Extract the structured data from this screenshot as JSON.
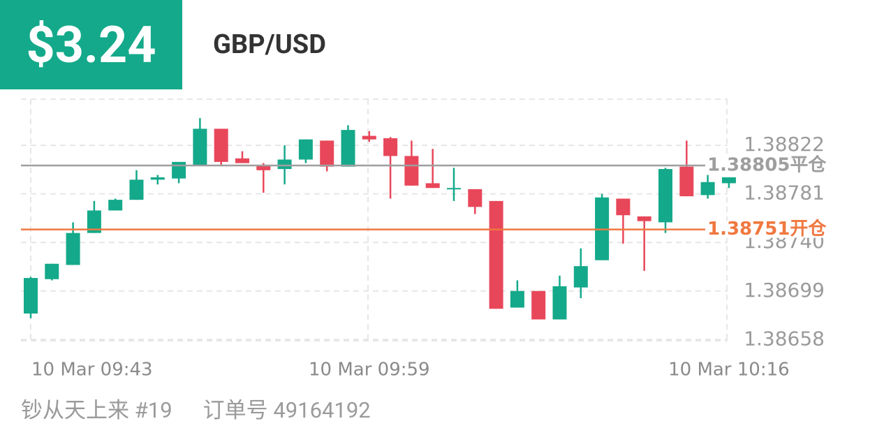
{
  "header": {
    "profit": "$3.24",
    "symbol": "GBP/USD"
  },
  "chart_data": {
    "type": "candlestick",
    "categories": [
      "10 Mar  09:43",
      null,
      null,
      null,
      null,
      null,
      null,
      null,
      null,
      null,
      null,
      null,
      null,
      null,
      null,
      null,
      "10 Mar  09:59",
      null,
      null,
      null,
      null,
      null,
      null,
      null,
      null,
      null,
      null,
      null,
      null,
      null,
      null,
      null,
      null,
      "10 Mar  10:16"
    ],
    "open": [
      1.3868,
      1.38709,
      1.38721,
      1.38748,
      1.38767,
      1.38776,
      1.38793,
      1.38794,
      1.38805,
      1.38836,
      1.38811,
      1.38805,
      1.38802,
      1.3881,
      1.38826,
      1.38804,
      1.3883,
      1.38828,
      1.38813,
      1.3879,
      1.38785,
      1.38785,
      1.38775,
      1.38685,
      1.38699,
      1.38675,
      1.38702,
      1.38725,
      1.38777,
      1.38762,
      1.38757,
      1.38804,
      1.3878,
      1.3879
    ],
    "high": [
      1.38711,
      1.38722,
      1.38757,
      1.38775,
      1.38777,
      1.38801,
      1.38797,
      1.38808,
      1.38845,
      1.38836,
      1.38817,
      1.38807,
      1.38822,
      1.38827,
      1.38826,
      1.38839,
      1.38834,
      1.38829,
      1.38826,
      1.38819,
      1.38803,
      1.38785,
      1.38775,
      1.38708,
      1.38699,
      1.38712,
      1.38735,
      1.38781,
      1.38777,
      1.38762,
      1.38803,
      1.38826,
      1.38797,
      1.38795
    ],
    "low": [
      1.38676,
      1.38708,
      1.38721,
      1.38748,
      1.38767,
      1.38776,
      1.38789,
      1.3879,
      1.38805,
      1.38805,
      1.38807,
      1.38782,
      1.38789,
      1.38807,
      1.388,
      1.38804,
      1.38825,
      1.38777,
      1.38788,
      1.38786,
      1.38775,
      1.38764,
      1.38684,
      1.38685,
      1.38675,
      1.38675,
      1.38693,
      1.38725,
      1.38739,
      1.38716,
      1.38748,
      1.38779,
      1.38777,
      1.38786
    ],
    "close": [
      1.3871,
      1.38722,
      1.38748,
      1.38767,
      1.38776,
      1.38793,
      1.38795,
      1.38808,
      1.38836,
      1.38808,
      1.38807,
      1.38801,
      1.3881,
      1.38827,
      1.38804,
      1.38835,
      1.38827,
      1.38813,
      1.38788,
      1.38786,
      1.38786,
      1.3877,
      1.38684,
      1.38699,
      1.38675,
      1.38703,
      1.3872,
      1.38778,
      1.38763,
      1.38758,
      1.38802,
      1.38779,
      1.38791,
      1.38795
    ],
    "up_color": "#14a98a",
    "down_color": "#e8475a",
    "ylim": [
      1.38657,
      1.38861
    ],
    "yticks": [
      1.38822,
      1.38781,
      {
        "value": 1.3874,
        "label": "1.38740"
      },
      1.38699,
      1.38658
    ],
    "grid": true,
    "reference_lines": [
      {
        "value": 1.38805,
        "label": "1.38805平仓",
        "color": "#9e9e9e"
      },
      {
        "value": 1.38751,
        "label": "1.38751开仓",
        "color": "#f07840"
      }
    ]
  },
  "footer": {
    "user": "钞从天上来 #19",
    "order": "订单号 49164192"
  }
}
